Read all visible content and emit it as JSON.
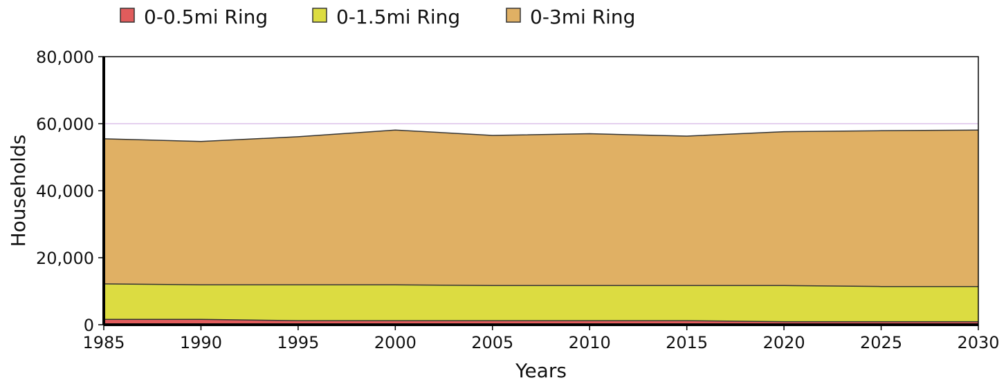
{
  "chart_data": {
    "type": "area",
    "stacking": "overlapping",
    "xlabel": "Years",
    "ylabel": "Households",
    "xlim": [
      1985,
      2030
    ],
    "ylim": [
      0,
      80000
    ],
    "x_ticks": [
      1985,
      1990,
      1995,
      2000,
      2005,
      2010,
      2015,
      2020,
      2025,
      2030
    ],
    "x_tick_labels": [
      "1985",
      "1990",
      "1995",
      "2000",
      "2005",
      "2010",
      "2015",
      "2020",
      "2025",
      "2030"
    ],
    "y_ticks": [
      0,
      20000,
      40000,
      60000,
      80000
    ],
    "y_tick_labels": [
      "0",
      "20,000",
      "40,000",
      "60,000",
      "80,000"
    ],
    "grid": "horizontal at 60,000",
    "legend_position": "top-left",
    "x": [
      1985,
      1990,
      1995,
      2000,
      2005,
      2010,
      2015,
      2020,
      2025,
      2030
    ],
    "series": [
      {
        "name": "0-0.5mi Ring",
        "color": "#e05c5c",
        "values": [
          1600,
          1600,
          1200,
          1200,
          1200,
          1200,
          1200,
          900,
          900,
          900
        ]
      },
      {
        "name": "0-1.5mi Ring",
        "color": "#dcdc41",
        "values": [
          12200,
          11900,
          11900,
          11900,
          11700,
          11700,
          11700,
          11700,
          11400,
          11400
        ]
      },
      {
        "name": "0-3mi Ring",
        "color": "#e0b064",
        "values": [
          55500,
          54700,
          56100,
          58100,
          56500,
          57000,
          56300,
          57600,
          57900,
          58100
        ]
      }
    ]
  }
}
